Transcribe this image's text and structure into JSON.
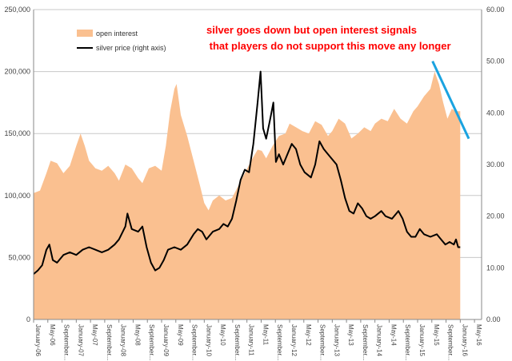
{
  "chart_data": {
    "type": "area+line",
    "title": "",
    "annotation": {
      "lines": [
        "silver goes down but open interest signals",
        " that players do not support this move any longer"
      ],
      "color": "#ff0000"
    },
    "trend_arrow_color": "#1aa3e0",
    "trend_arrow": {
      "from": {
        "t": 2015.35,
        "y2": 50.0
      },
      "to": {
        "t": 2016.2,
        "y2": 35.0
      }
    },
    "x_tick_labels": [
      "January-06",
      "May-06",
      "September...",
      "January-07",
      "May-07",
      "September...",
      "January-08",
      "May-08",
      "September...",
      "January-09",
      "May-09",
      "September...",
      "January-10",
      "May-10",
      "September...",
      "January-11",
      "May-11",
      "September...",
      "January-12",
      "May-12",
      "September...",
      "January-13",
      "May-13",
      "September...",
      "January-14",
      "May-14",
      "September...",
      "January-15",
      "May-15",
      "September...",
      "January-16",
      "May-16"
    ],
    "y_left": {
      "min": 0,
      "max": 250000,
      "step": 50000,
      "tick_labels": [
        "0",
        "50,000",
        "100,000",
        "150,000",
        "200,000",
        "250,000"
      ]
    },
    "y_right": {
      "min": 0,
      "max": 60,
      "step": 10,
      "tick_labels": [
        "0.00",
        "10.00",
        "20.00",
        "30.00",
        "40.00",
        "50.00",
        "60.00"
      ]
    },
    "grid": "horizontal",
    "legend_position": "top-left",
    "series": [
      {
        "name": "open interest",
        "axis": "left",
        "color": "#fac090",
        "points": [
          [
            2006.0,
            102000
          ],
          [
            2006.15,
            104000
          ],
          [
            2006.3,
            118000
          ],
          [
            2006.4,
            128000
          ],
          [
            2006.55,
            126000
          ],
          [
            2006.7,
            118000
          ],
          [
            2006.85,
            124000
          ],
          [
            2007.0,
            140000
          ],
          [
            2007.1,
            150000
          ],
          [
            2007.2,
            140000
          ],
          [
            2007.3,
            128000
          ],
          [
            2007.45,
            122000
          ],
          [
            2007.6,
            120000
          ],
          [
            2007.75,
            124000
          ],
          [
            2007.9,
            118000
          ],
          [
            2008.0,
            112000
          ],
          [
            2008.15,
            125000
          ],
          [
            2008.3,
            122000
          ],
          [
            2008.45,
            114000
          ],
          [
            2008.55,
            110000
          ],
          [
            2008.7,
            122000
          ],
          [
            2008.85,
            124000
          ],
          [
            2009.0,
            120000
          ],
          [
            2009.1,
            140000
          ],
          [
            2009.2,
            168000
          ],
          [
            2009.3,
            186000
          ],
          [
            2009.35,
            190000
          ],
          [
            2009.45,
            165000
          ],
          [
            2009.6,
            148000
          ],
          [
            2009.75,
            128000
          ],
          [
            2009.9,
            108000
          ],
          [
            2010.0,
            94000
          ],
          [
            2010.1,
            88000
          ],
          [
            2010.2,
            96000
          ],
          [
            2010.35,
            100000
          ],
          [
            2010.5,
            96000
          ],
          [
            2010.65,
            98000
          ],
          [
            2010.8,
            108000
          ],
          [
            2010.95,
            118000
          ],
          [
            2011.1,
            128000
          ],
          [
            2011.25,
            137000
          ],
          [
            2011.35,
            136000
          ],
          [
            2011.45,
            130000
          ],
          [
            2011.6,
            140000
          ],
          [
            2011.75,
            148000
          ],
          [
            2011.9,
            150000
          ],
          [
            2012.0,
            158000
          ],
          [
            2012.15,
            155000
          ],
          [
            2012.3,
            152000
          ],
          [
            2012.45,
            150000
          ],
          [
            2012.6,
            160000
          ],
          [
            2012.75,
            157000
          ],
          [
            2012.9,
            148000
          ],
          [
            2013.0,
            152000
          ],
          [
            2013.15,
            162000
          ],
          [
            2013.3,
            158000
          ],
          [
            2013.45,
            146000
          ],
          [
            2013.6,
            150000
          ],
          [
            2013.75,
            155000
          ],
          [
            2013.9,
            152000
          ],
          [
            2014.0,
            158000
          ],
          [
            2014.15,
            162000
          ],
          [
            2014.3,
            160000
          ],
          [
            2014.45,
            170000
          ],
          [
            2014.6,
            162000
          ],
          [
            2014.75,
            158000
          ],
          [
            2014.9,
            168000
          ],
          [
            2015.0,
            172000
          ],
          [
            2015.15,
            180000
          ],
          [
            2015.3,
            186000
          ],
          [
            2015.4,
            200000
          ],
          [
            2015.5,
            190000
          ],
          [
            2015.6,
            175000
          ],
          [
            2015.7,
            162000
          ],
          [
            2015.8,
            170000
          ],
          [
            2015.9,
            168000
          ],
          [
            2016.0,
            168000
          ]
        ]
      },
      {
        "name": "silver price (right axis)",
        "axis": "right",
        "color": "#000000",
        "points": [
          [
            2006.0,
            8.8
          ],
          [
            2006.1,
            9.5
          ],
          [
            2006.2,
            10.5
          ],
          [
            2006.3,
            13.5
          ],
          [
            2006.37,
            14.5
          ],
          [
            2006.45,
            11.5
          ],
          [
            2006.55,
            11.0
          ],
          [
            2006.7,
            12.5
          ],
          [
            2006.85,
            13.0
          ],
          [
            2007.0,
            12.5
          ],
          [
            2007.15,
            13.5
          ],
          [
            2007.3,
            14.0
          ],
          [
            2007.45,
            13.5
          ],
          [
            2007.6,
            13.0
          ],
          [
            2007.75,
            13.5
          ],
          [
            2007.9,
            14.5
          ],
          [
            2008.0,
            15.5
          ],
          [
            2008.15,
            18.0
          ],
          [
            2008.2,
            20.5
          ],
          [
            2008.3,
            17.5
          ],
          [
            2008.45,
            17.0
          ],
          [
            2008.55,
            18.0
          ],
          [
            2008.65,
            14.0
          ],
          [
            2008.75,
            11.0
          ],
          [
            2008.85,
            9.5
          ],
          [
            2008.95,
            10.0
          ],
          [
            2009.05,
            11.5
          ],
          [
            2009.15,
            13.5
          ],
          [
            2009.3,
            14.0
          ],
          [
            2009.45,
            13.5
          ],
          [
            2009.6,
            14.5
          ],
          [
            2009.75,
            16.5
          ],
          [
            2009.85,
            17.5
          ],
          [
            2009.95,
            17.0
          ],
          [
            2010.05,
            15.5
          ],
          [
            2010.2,
            17.0
          ],
          [
            2010.35,
            17.5
          ],
          [
            2010.45,
            18.5
          ],
          [
            2010.55,
            18.0
          ],
          [
            2010.65,
            19.5
          ],
          [
            2010.75,
            23.0
          ],
          [
            2010.85,
            27.0
          ],
          [
            2010.95,
            29.0
          ],
          [
            2011.05,
            28.5
          ],
          [
            2011.15,
            34.0
          ],
          [
            2011.25,
            42.0
          ],
          [
            2011.32,
            48.0
          ],
          [
            2011.38,
            37.0
          ],
          [
            2011.45,
            35.0
          ],
          [
            2011.55,
            39.0
          ],
          [
            2011.62,
            42.0
          ],
          [
            2011.68,
            30.5
          ],
          [
            2011.75,
            32.0
          ],
          [
            2011.85,
            30.0
          ],
          [
            2011.95,
            32.0
          ],
          [
            2012.05,
            34.0
          ],
          [
            2012.15,
            33.0
          ],
          [
            2012.25,
            30.0
          ],
          [
            2012.35,
            28.5
          ],
          [
            2012.5,
            27.5
          ],
          [
            2012.6,
            30.0
          ],
          [
            2012.7,
            34.5
          ],
          [
            2012.8,
            33.0
          ],
          [
            2012.9,
            32.0
          ],
          [
            2013.0,
            31.0
          ],
          [
            2013.1,
            30.0
          ],
          [
            2013.2,
            27.0
          ],
          [
            2013.3,
            23.5
          ],
          [
            2013.4,
            21.0
          ],
          [
            2013.5,
            20.5
          ],
          [
            2013.6,
            22.5
          ],
          [
            2013.7,
            21.5
          ],
          [
            2013.8,
            20.0
          ],
          [
            2013.9,
            19.5
          ],
          [
            2014.0,
            20.0
          ],
          [
            2014.15,
            21.0
          ],
          [
            2014.25,
            20.0
          ],
          [
            2014.4,
            19.5
          ],
          [
            2014.55,
            21.0
          ],
          [
            2014.65,
            19.5
          ],
          [
            2014.75,
            17.0
          ],
          [
            2014.85,
            16.0
          ],
          [
            2014.95,
            16.0
          ],
          [
            2015.05,
            17.5
          ],
          [
            2015.15,
            16.5
          ],
          [
            2015.3,
            16.0
          ],
          [
            2015.45,
            16.5
          ],
          [
            2015.55,
            15.5
          ],
          [
            2015.65,
            14.5
          ],
          [
            2015.75,
            15.0
          ],
          [
            2015.85,
            14.5
          ],
          [
            2015.9,
            15.5
          ],
          [
            2015.95,
            14.0
          ],
          [
            2016.0,
            14.0
          ]
        ]
      }
    ]
  }
}
